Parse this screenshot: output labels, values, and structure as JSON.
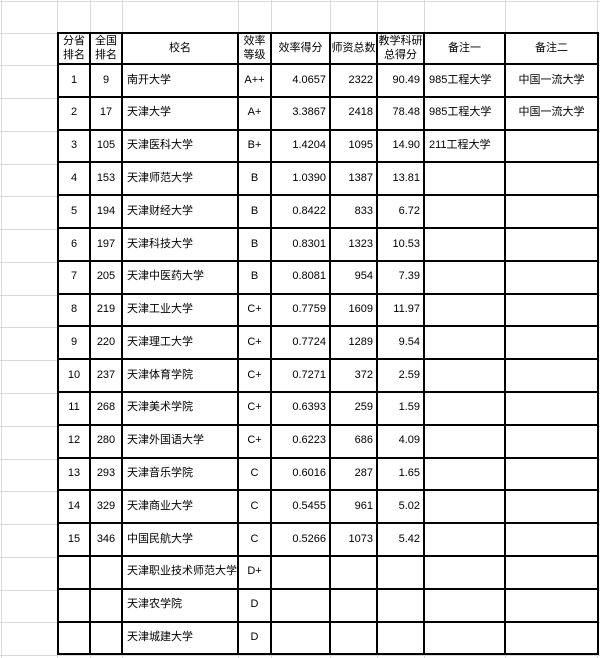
{
  "table": {
    "headers": [
      "分省\n排名",
      "全国\n排名",
      "校名",
      "效率\n等级",
      "效率得分",
      "师资总数",
      "教学科研\n总得分",
      "备注一",
      "备注二"
    ],
    "rows": [
      [
        "1",
        "9",
        "南开大学",
        "A++",
        "4.0657",
        "2322",
        "90.49",
        "985工程大学",
        "中国一流大学"
      ],
      [
        "2",
        "17",
        "天津大学",
        "A+",
        "3.3867",
        "2418",
        "78.48",
        "985工程大学",
        "中国一流大学"
      ],
      [
        "3",
        "105",
        "天津医科大学",
        "B+",
        "1.4204",
        "1095",
        "14.90",
        "211工程大学",
        ""
      ],
      [
        "4",
        "153",
        "天津师范大学",
        "B",
        "1.0390",
        "1387",
        "13.81",
        "",
        ""
      ],
      [
        "5",
        "194",
        "天津财经大学",
        "B",
        "0.8422",
        "833",
        "6.72",
        "",
        ""
      ],
      [
        "6",
        "197",
        "天津科技大学",
        "B",
        "0.8301",
        "1323",
        "10.53",
        "",
        ""
      ],
      [
        "7",
        "205",
        "天津中医药大学",
        "B",
        "0.8081",
        "954",
        "7.39",
        "",
        ""
      ],
      [
        "8",
        "219",
        "天津工业大学",
        "C+",
        "0.7759",
        "1609",
        "11.97",
        "",
        ""
      ],
      [
        "9",
        "220",
        "天津理工大学",
        "C+",
        "0.7724",
        "1289",
        "9.54",
        "",
        ""
      ],
      [
        "10",
        "237",
        "天津体育学院",
        "C+",
        "0.7271",
        "372",
        "2.59",
        "",
        ""
      ],
      [
        "11",
        "268",
        "天津美术学院",
        "C+",
        "0.6393",
        "259",
        "1.59",
        "",
        ""
      ],
      [
        "12",
        "280",
        "天津外国语大学",
        "C+",
        "0.6223",
        "686",
        "4.09",
        "",
        ""
      ],
      [
        "13",
        "293",
        "天津音乐学院",
        "C",
        "0.6016",
        "287",
        "1.65",
        "",
        ""
      ],
      [
        "14",
        "329",
        "天津商业大学",
        "C",
        "0.5455",
        "961",
        "5.02",
        "",
        ""
      ],
      [
        "15",
        "346",
        "中国民航大学",
        "C",
        "0.5266",
        "1073",
        "5.42",
        "",
        ""
      ],
      [
        "",
        "",
        "天津职业技术师范大学",
        "D+",
        "",
        "",
        "",
        "",
        ""
      ],
      [
        "",
        "",
        "天津农学院",
        "D",
        "",
        "",
        "",
        "",
        ""
      ],
      [
        "",
        "",
        "天津城建大学",
        "D",
        "",
        "",
        "",
        "",
        ""
      ]
    ]
  }
}
